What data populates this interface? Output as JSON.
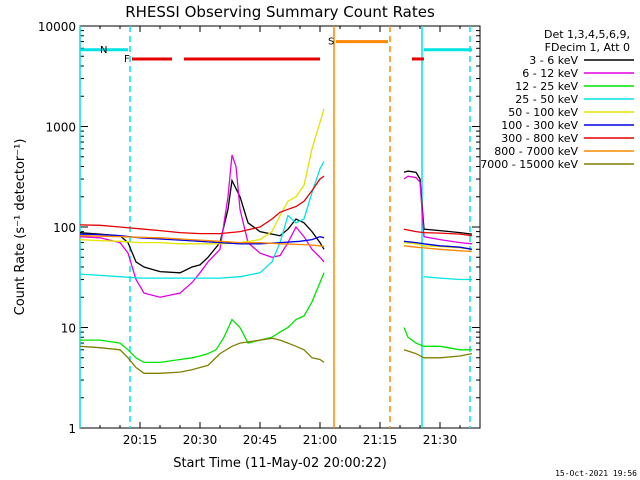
{
  "chart_data": {
    "type": "line",
    "title": "RHESSI Observing Summary Count Rates",
    "xlabel": "Start Time (11-May-02 20:00:22)",
    "ylabel": "Count Rate (s⁻¹ detector⁻¹)",
    "x_unit": "minutes after 20:00",
    "xlim": [
      0,
      100
    ],
    "ylim": [
      1,
      10000
    ],
    "log_y": true,
    "x_ticks": [
      {
        "x": 15,
        "label": "20:15"
      },
      {
        "x": 30,
        "label": "20:30"
      },
      {
        "x": 45,
        "label": "20:45"
      },
      {
        "x": 60,
        "label": "21:00"
      },
      {
        "x": 75,
        "label": "21:15"
      },
      {
        "x": 90,
        "label": "21:30"
      }
    ],
    "y_ticks": [
      {
        "y": 1,
        "label": "1"
      },
      {
        "y": 10,
        "label": "10"
      },
      {
        "y": 100,
        "label": "100"
      },
      {
        "y": 1000,
        "label": "1000"
      },
      {
        "y": 10000,
        "label": "10000"
      }
    ],
    "legend_header": [
      "Det 1,3,4,5,6,9,",
      "FDecim 1, Att 0"
    ],
    "legend_position": "right",
    "timestamp": "15-Oct-2021 19:56",
    "series": [
      {
        "name": "3 - 6 keV",
        "color": "#000000",
        "points": [
          [
            0,
            88
          ],
          [
            5,
            85
          ],
          [
            10,
            82
          ],
          [
            12,
            70
          ],
          [
            14,
            45
          ],
          [
            16,
            40
          ],
          [
            20,
            36
          ],
          [
            25,
            35
          ],
          [
            28,
            40
          ],
          [
            30,
            42
          ],
          [
            32,
            50
          ],
          [
            35,
            70
          ],
          [
            37,
            150
          ],
          [
            38,
            290
          ],
          [
            40,
            200
          ],
          [
            42,
            110
          ],
          [
            45,
            90
          ],
          [
            48,
            85
          ],
          [
            50,
            82
          ],
          [
            52,
            95
          ],
          [
            54,
            120
          ],
          [
            56,
            110
          ],
          [
            58,
            90
          ],
          [
            60,
            70
          ],
          [
            61,
            60
          ]
        ]
      },
      {
        "name": "6 - 12 keV",
        "color": "#e400e4",
        "points": [
          [
            0,
            80
          ],
          [
            5,
            78
          ],
          [
            10,
            70
          ],
          [
            12,
            55
          ],
          [
            14,
            30
          ],
          [
            16,
            22
          ],
          [
            20,
            20
          ],
          [
            25,
            22
          ],
          [
            28,
            28
          ],
          [
            30,
            35
          ],
          [
            32,
            45
          ],
          [
            35,
            60
          ],
          [
            37,
            200
          ],
          [
            38,
            520
          ],
          [
            39,
            400
          ],
          [
            40,
            150
          ],
          [
            42,
            70
          ],
          [
            45,
            55
          ],
          [
            48,
            50
          ],
          [
            50,
            52
          ],
          [
            52,
            70
          ],
          [
            54,
            100
          ],
          [
            56,
            80
          ],
          [
            58,
            60
          ],
          [
            60,
            50
          ],
          [
            61,
            45
          ]
        ]
      },
      {
        "name": "12 - 25 keV",
        "color": "#00e400",
        "points": [
          [
            0,
            7.5
          ],
          [
            5,
            7.5
          ],
          [
            10,
            7
          ],
          [
            12,
            6
          ],
          [
            14,
            5
          ],
          [
            16,
            4.5
          ],
          [
            20,
            4.5
          ],
          [
            25,
            4.8
          ],
          [
            28,
            5
          ],
          [
            30,
            5.2
          ],
          [
            32,
            5.5
          ],
          [
            34,
            6
          ],
          [
            36,
            8
          ],
          [
            38,
            12
          ],
          [
            40,
            10
          ],
          [
            42,
            7
          ],
          [
            45,
            7.5
          ],
          [
            48,
            8
          ],
          [
            50,
            9
          ],
          [
            52,
            10
          ],
          [
            54,
            12
          ],
          [
            56,
            13
          ],
          [
            58,
            18
          ],
          [
            60,
            28
          ],
          [
            61,
            35
          ]
        ]
      },
      {
        "name": "25 - 50 keV",
        "color": "#00e4e4",
        "points": [
          [
            0,
            34
          ],
          [
            5,
            33
          ],
          [
            10,
            32
          ],
          [
            15,
            31
          ],
          [
            20,
            31
          ],
          [
            25,
            31
          ],
          [
            30,
            31
          ],
          [
            35,
            31
          ],
          [
            40,
            32
          ],
          [
            45,
            35
          ],
          [
            48,
            45
          ],
          [
            50,
            70
          ],
          [
            52,
            130
          ],
          [
            54,
            110
          ],
          [
            56,
            120
          ],
          [
            58,
            220
          ],
          [
            60,
            380
          ],
          [
            61,
            450
          ]
        ]
      },
      {
        "name": "50 - 100 keV",
        "color": "#e4e400",
        "points": [
          [
            0,
            75
          ],
          [
            5,
            73
          ],
          [
            10,
            72
          ],
          [
            15,
            70
          ],
          [
            20,
            70
          ],
          [
            25,
            68
          ],
          [
            30,
            68
          ],
          [
            35,
            68
          ],
          [
            40,
            70
          ],
          [
            45,
            75
          ],
          [
            48,
            90
          ],
          [
            50,
            130
          ],
          [
            52,
            180
          ],
          [
            54,
            200
          ],
          [
            56,
            260
          ],
          [
            58,
            600
          ],
          [
            60,
            1100
          ],
          [
            61,
            1500
          ]
        ]
      },
      {
        "name": "100 - 300 keV",
        "color": "#0000e4",
        "points": [
          [
            0,
            85
          ],
          [
            5,
            84
          ],
          [
            10,
            82
          ],
          [
            15,
            78
          ],
          [
            20,
            76
          ],
          [
            25,
            74
          ],
          [
            30,
            72
          ],
          [
            35,
            70
          ],
          [
            40,
            68
          ],
          [
            45,
            68
          ],
          [
            50,
            70
          ],
          [
            55,
            72
          ],
          [
            58,
            75
          ],
          [
            60,
            80
          ],
          [
            61,
            78
          ]
        ]
      },
      {
        "name": "300 - 800 keV",
        "color": "#e40000",
        "points": [
          [
            0,
            105
          ],
          [
            5,
            104
          ],
          [
            10,
            100
          ],
          [
            15,
            96
          ],
          [
            20,
            92
          ],
          [
            25,
            88
          ],
          [
            30,
            86
          ],
          [
            35,
            86
          ],
          [
            40,
            90
          ],
          [
            45,
            100
          ],
          [
            48,
            120
          ],
          [
            50,
            140
          ],
          [
            52,
            150
          ],
          [
            54,
            160
          ],
          [
            56,
            180
          ],
          [
            58,
            230
          ],
          [
            60,
            300
          ],
          [
            61,
            320
          ]
        ]
      },
      {
        "name": "800 - 7000 keV",
        "color": "#ff8800",
        "points": [
          [
            0,
            82
          ],
          [
            5,
            81
          ],
          [
            10,
            80
          ],
          [
            15,
            79
          ],
          [
            20,
            78
          ],
          [
            25,
            76
          ],
          [
            30,
            74
          ],
          [
            35,
            72
          ],
          [
            40,
            70
          ],
          [
            45,
            70
          ],
          [
            50,
            68
          ],
          [
            55,
            67
          ],
          [
            58,
            66
          ],
          [
            60,
            65
          ],
          [
            61,
            64
          ]
        ]
      },
      {
        "name": "7000 - 15000 keV",
        "color": "#808000",
        "points": [
          [
            0,
            6.5
          ],
          [
            5,
            6.3
          ],
          [
            10,
            6
          ],
          [
            12,
            5
          ],
          [
            14,
            4
          ],
          [
            16,
            3.5
          ],
          [
            20,
            3.5
          ],
          [
            25,
            3.6
          ],
          [
            28,
            3.8
          ],
          [
            30,
            4
          ],
          [
            32,
            4.2
          ],
          [
            35,
            5.5
          ],
          [
            38,
            6.5
          ],
          [
            40,
            7
          ],
          [
            45,
            7.5
          ],
          [
            48,
            7.8
          ],
          [
            50,
            7.5
          ],
          [
            52,
            7
          ],
          [
            54,
            6.5
          ],
          [
            56,
            6
          ],
          [
            58,
            5
          ],
          [
            60,
            4.8
          ],
          [
            61,
            4.5
          ]
        ]
      }
    ],
    "after_gap_series": [
      {
        "name": "3 - 6 keV",
        "points": [
          [
            81,
            350
          ],
          [
            82,
            360
          ],
          [
            84,
            350
          ],
          [
            85,
            300
          ],
          [
            86,
            95
          ],
          [
            90,
            92
          ],
          [
            95,
            88
          ],
          [
            98,
            85
          ]
        ]
      },
      {
        "name": "6 - 12 keV",
        "points": [
          [
            81,
            300
          ],
          [
            82,
            320
          ],
          [
            84,
            310
          ],
          [
            85,
            280
          ],
          [
            86,
            80
          ],
          [
            90,
            75
          ],
          [
            95,
            70
          ],
          [
            98,
            68
          ]
        ]
      },
      {
        "name": "12 - 25 keV",
        "points": [
          [
            81,
            10
          ],
          [
            82,
            8
          ],
          [
            84,
            7
          ],
          [
            86,
            6.5
          ],
          [
            90,
            6.5
          ],
          [
            95,
            6
          ],
          [
            98,
            6
          ]
        ]
      },
      {
        "name": "25 - 50 keV",
        "points": [
          [
            86,
            32
          ],
          [
            90,
            31
          ],
          [
            95,
            30
          ],
          [
            98,
            30
          ]
        ]
      },
      {
        "name": "50 - 100 keV",
        "points": [
          [
            81,
            70
          ],
          [
            84,
            68
          ],
          [
            86,
            65
          ],
          [
            90,
            64
          ],
          [
            95,
            62
          ],
          [
            98,
            60
          ]
        ]
      },
      {
        "name": "100 - 300 keV",
        "points": [
          [
            81,
            72
          ],
          [
            84,
            70
          ],
          [
            86,
            68
          ],
          [
            90,
            65
          ],
          [
            95,
            63
          ],
          [
            98,
            60
          ]
        ]
      },
      {
        "name": "300 - 800 keV",
        "points": [
          [
            81,
            95
          ],
          [
            84,
            90
          ],
          [
            86,
            88
          ],
          [
            90,
            87
          ],
          [
            95,
            85
          ],
          [
            98,
            82
          ]
        ]
      },
      {
        "name": "800 - 7000 keV",
        "points": [
          [
            81,
            65
          ],
          [
            84,
            63
          ],
          [
            86,
            62
          ],
          [
            90,
            60
          ],
          [
            95,
            58
          ],
          [
            98,
            57
          ]
        ]
      },
      {
        "name": "7000 - 15000 keV",
        "points": [
          [
            81,
            6
          ],
          [
            84,
            5.5
          ],
          [
            86,
            5
          ],
          [
            90,
            5
          ],
          [
            95,
            5.2
          ],
          [
            98,
            5.5
          ]
        ]
      }
    ],
    "flags": [
      {
        "label": "F",
        "color": "#e40000",
        "segments": [
          [
            13,
            23
          ],
          [
            26,
            60
          ],
          [
            83,
            86
          ]
        ],
        "level": 4700
      },
      {
        "label": "N",
        "color": "#00e4e4",
        "segments": [
          [
            0,
            12
          ],
          [
            86,
            98
          ]
        ],
        "level": 5800
      },
      {
        "label": "S",
        "color": "#ff8800",
        "segments": [
          [
            64,
            77
          ]
        ],
        "level": 7000
      }
    ],
    "vertical_lines": [
      {
        "x": 0,
        "color": "#00e4e4",
        "style": "solid"
      },
      {
        "x": 12.5,
        "color": "#00e4e4",
        "style": "dashed"
      },
      {
        "x": 63.5,
        "color": "#ff8800",
        "style": "solid"
      },
      {
        "x": 77.5,
        "color": "#ff8800",
        "style": "dashed"
      },
      {
        "x": 85.5,
        "color": "#00e4e4",
        "style": "solid"
      },
      {
        "x": 97.5,
        "color": "#00e4e4",
        "style": "dashed"
      }
    ]
  }
}
